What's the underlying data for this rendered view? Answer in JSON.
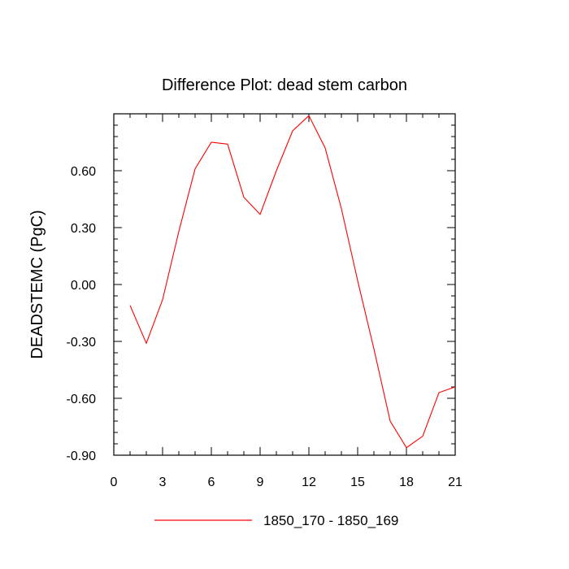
{
  "chart_data": {
    "type": "line",
    "title": "Difference Plot: dead stem carbon",
    "xlabel": "",
    "ylabel": "DEADSTEMC  (PgC)",
    "xlim": [
      0,
      21
    ],
    "ylim": [
      -0.9,
      0.9
    ],
    "x_ticks": [
      0,
      3,
      6,
      9,
      12,
      15,
      18,
      21
    ],
    "x_tick_labels": [
      "0",
      "3",
      "6",
      "9",
      "12",
      "15",
      "18",
      "21"
    ],
    "y_ticks": [
      -0.9,
      -0.6,
      -0.3,
      0.0,
      0.3,
      0.6
    ],
    "y_tick_labels": [
      "-0.90",
      "-0.60",
      "-0.30",
      "0.00",
      "0.30",
      "0.60"
    ],
    "grid": false,
    "legend_position": "bottom-center",
    "series": [
      {
        "name": "1850_170 - 1850_169",
        "color": "#ff0000",
        "x": [
          1,
          2,
          3,
          4,
          5,
          6,
          7,
          8,
          9,
          10,
          11,
          12,
          13,
          14,
          15,
          16,
          17,
          18,
          19,
          20,
          21
        ],
        "values": [
          -0.11,
          -0.31,
          -0.08,
          0.28,
          0.61,
          0.75,
          0.74,
          0.46,
          0.37,
          0.6,
          0.81,
          0.89,
          0.72,
          0.4,
          0.02,
          -0.34,
          -0.72,
          -0.86,
          -0.8,
          -0.57,
          -0.54
        ]
      }
    ]
  }
}
